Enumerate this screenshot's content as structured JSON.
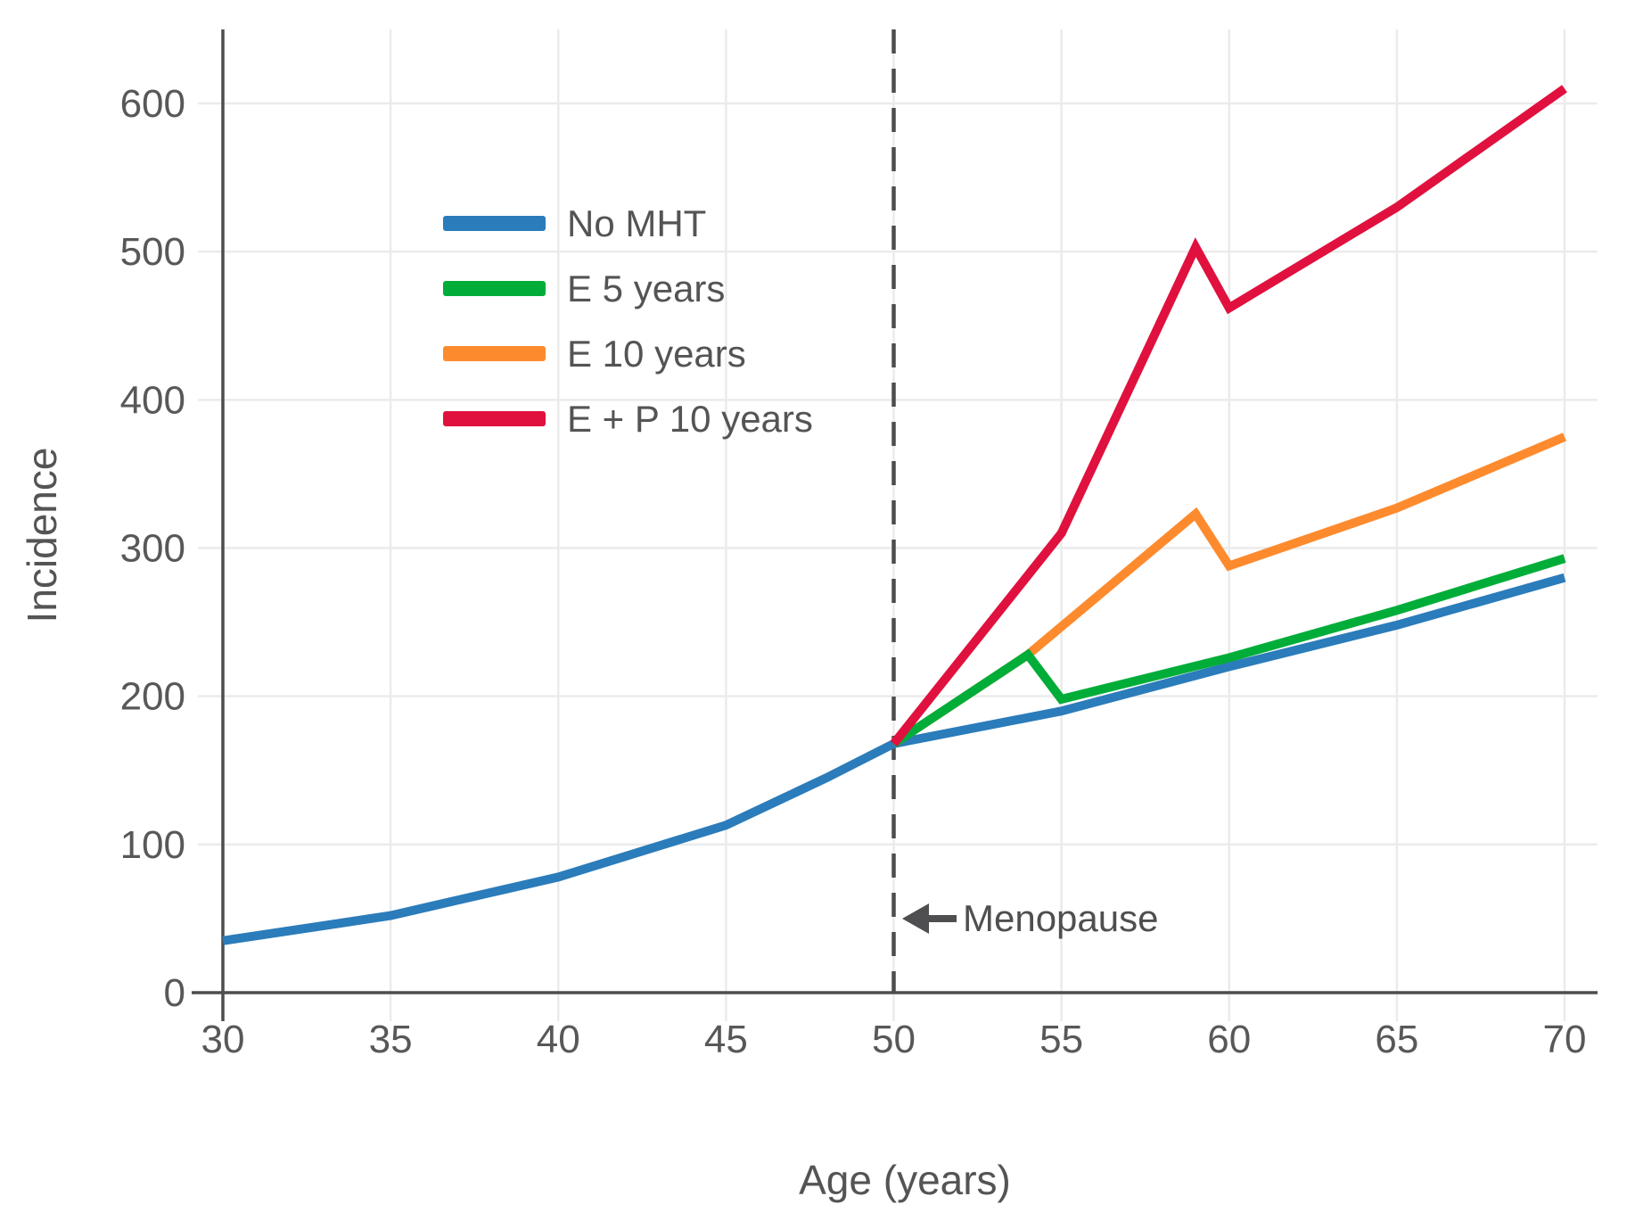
{
  "page": {
    "background": "#ffffff"
  },
  "chart_data": {
    "type": "line",
    "title": "",
    "xlabel": "Age (years)",
    "ylabel": "Incidence",
    "x_ticks": [
      30,
      35,
      40,
      45,
      50,
      55,
      60,
      65,
      70
    ],
    "y_ticks": [
      0,
      100,
      200,
      300,
      400,
      500,
      600
    ],
    "xlim": [
      30,
      71
    ],
    "ylim": [
      0,
      655
    ],
    "grid": true,
    "legend": {
      "position": "upper-left-inside"
    },
    "reference_line": {
      "axis": "x",
      "value": 50,
      "style": "dashed",
      "color": "#4d4d4f"
    },
    "annotation": {
      "text": "Menopause",
      "arrow_direction": "left",
      "points_to_x": 50,
      "at_y": 50
    },
    "series": [
      {
        "name": "No MHT",
        "color": "#2B7CBA",
        "points": [
          [
            30,
            35
          ],
          [
            35,
            52
          ],
          [
            40,
            78
          ],
          [
            45,
            113
          ],
          [
            48,
            145
          ],
          [
            50,
            168
          ],
          [
            55,
            190
          ],
          [
            60,
            220
          ],
          [
            65,
            248
          ],
          [
            70,
            280
          ]
        ]
      },
      {
        "name": "E 5 years",
        "color": "#00AD39",
        "points": [
          [
            50,
            168
          ],
          [
            54,
            228
          ],
          [
            55,
            198
          ],
          [
            60,
            226
          ],
          [
            65,
            258
          ],
          [
            70,
            293
          ]
        ]
      },
      {
        "name": "E 10 years",
        "color": "#FD8B2E",
        "points": [
          [
            50,
            168
          ],
          [
            54,
            228
          ],
          [
            59,
            323
          ],
          [
            60,
            288
          ],
          [
            65,
            327
          ],
          [
            70,
            375
          ]
        ]
      },
      {
        "name": "E + P 10 years",
        "color": "#E0113E",
        "points": [
          [
            50,
            168
          ],
          [
            55,
            310
          ],
          [
            59,
            503
          ],
          [
            60,
            462
          ],
          [
            65,
            530
          ],
          [
            70,
            610
          ]
        ]
      }
    ],
    "draw_order": [
      0,
      2,
      1,
      3
    ]
  },
  "colors": {
    "axis": "#4d4d4f",
    "tick_text": "#58585a",
    "grid": "#ebebeb",
    "annotation": "#4f4f51"
  }
}
